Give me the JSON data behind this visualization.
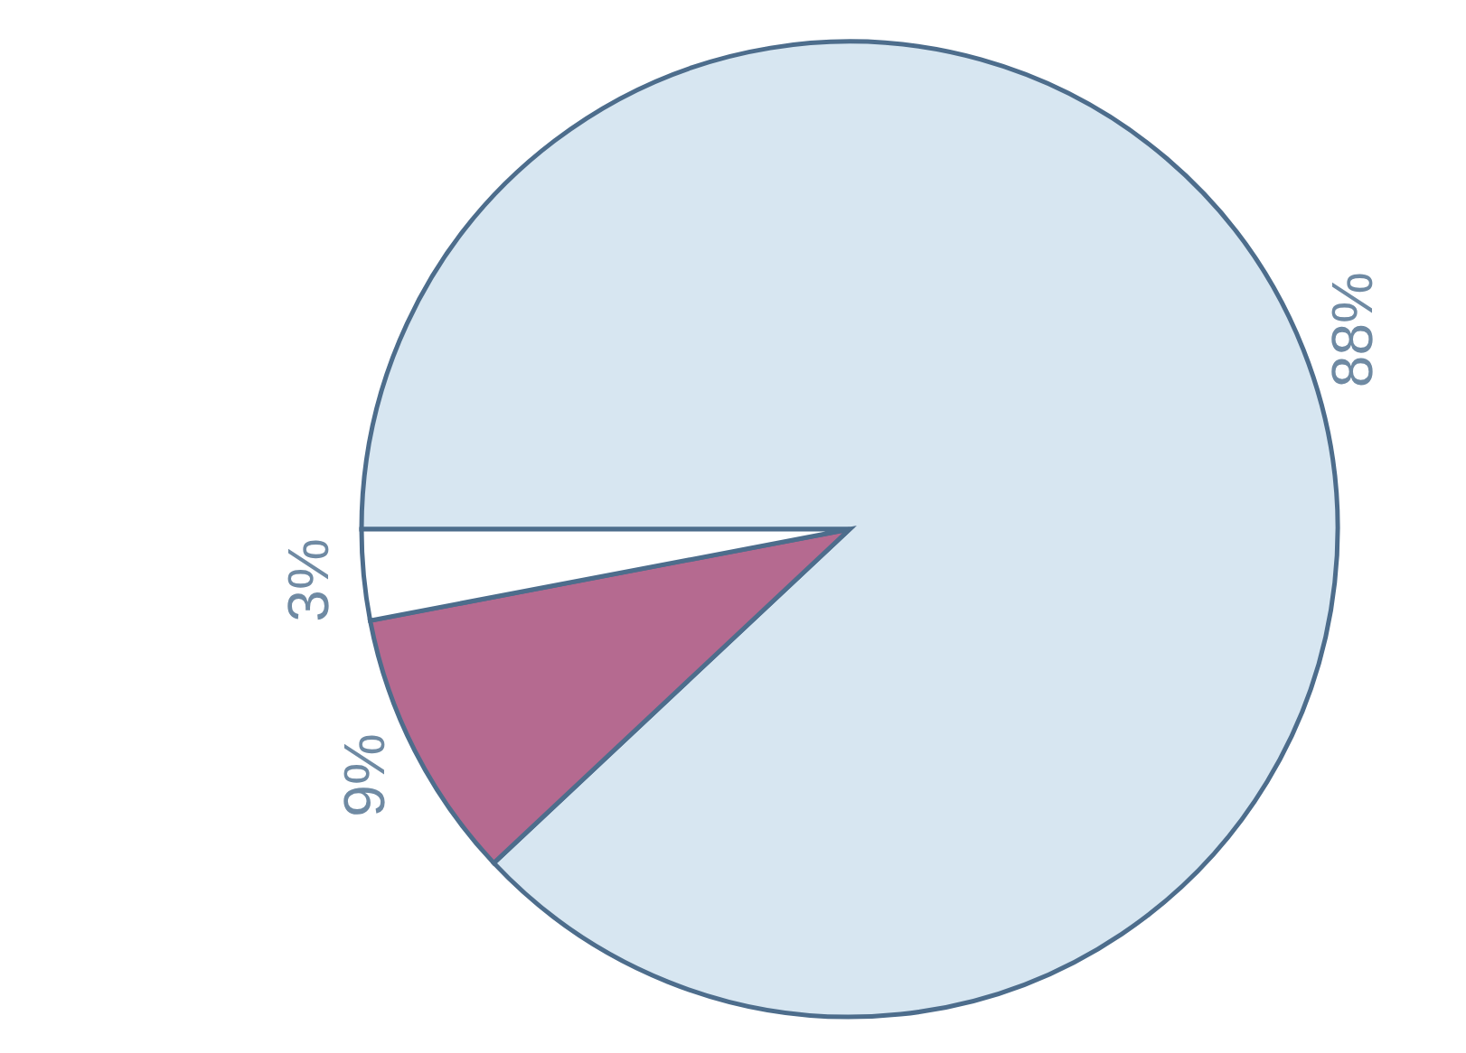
{
  "chart_data": {
    "type": "pie",
    "categories": [
      null,
      null,
      null
    ],
    "values": [
      88,
      9,
      3
    ],
    "colors": [
      "#d7e6f1",
      "#b56a90",
      "#ffffff"
    ],
    "value_labels": [
      "88%",
      "9%",
      "3%"
    ]
  }
}
